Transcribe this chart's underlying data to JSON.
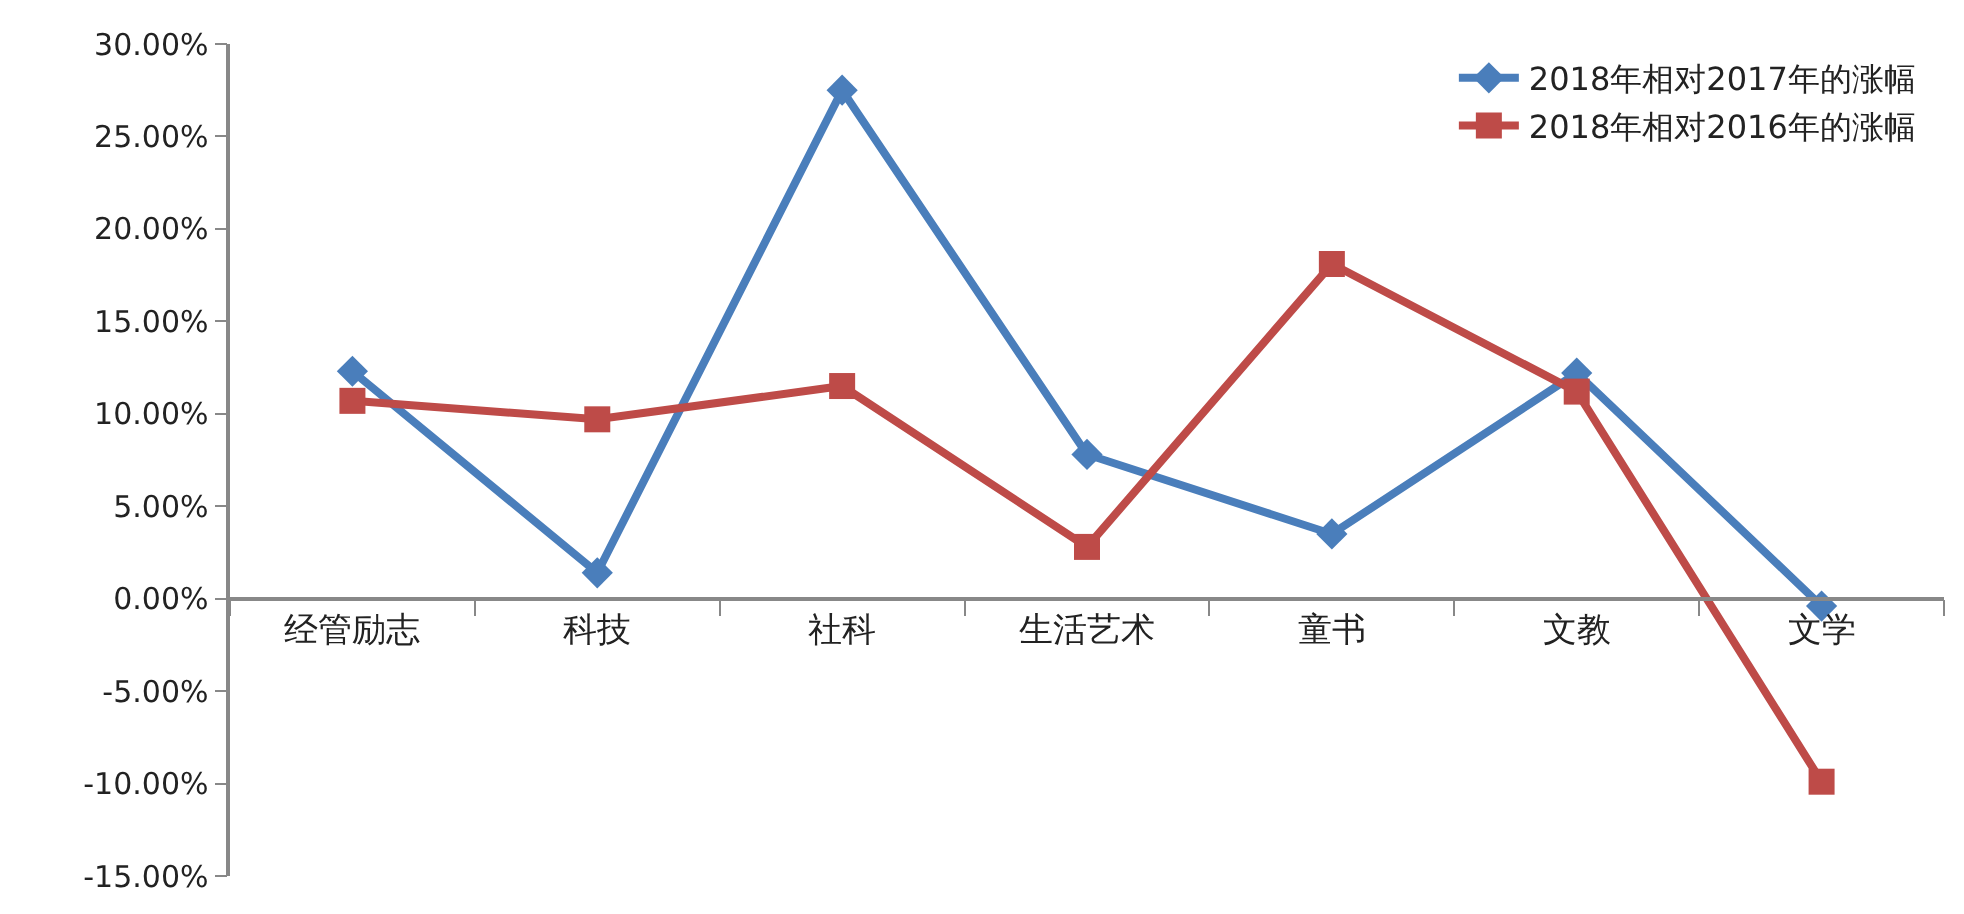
{
  "chart_data": {
    "type": "line",
    "categories": [
      "经管励志",
      "科技",
      "社科",
      "生活艺术",
      "童书",
      "文教",
      "文学"
    ],
    "series": [
      {
        "name": "2018年相对2017年的涨幅",
        "color": "#4a7ebb",
        "marker": "diamond",
        "values": [
          12.3,
          1.4,
          27.5,
          7.8,
          3.5,
          12.2,
          -0.4
        ]
      },
      {
        "name": "2018年相对2016年的涨幅",
        "color": "#be4b48",
        "marker": "square",
        "values": [
          10.7,
          9.7,
          11.5,
          2.8,
          18.1,
          11.2,
          -9.9
        ]
      }
    ],
    "ylim": [
      -15,
      30
    ],
    "yticks": [
      {
        "value": -15,
        "label": "-15.00%"
      },
      {
        "value": -10,
        "label": "-10.00%"
      },
      {
        "value": -5,
        "label": "-5.00%"
      },
      {
        "value": 0,
        "label": "0.00%"
      },
      {
        "value": 5,
        "label": "5.00%"
      },
      {
        "value": 10,
        "label": "10.00%"
      },
      {
        "value": 15,
        "label": "15.00%"
      },
      {
        "value": 20,
        "label": "20.00%"
      },
      {
        "value": 25,
        "label": "25.00%"
      },
      {
        "value": 30,
        "label": "30.00%"
      }
    ],
    "legend": "top right",
    "line_style": "solid"
  }
}
